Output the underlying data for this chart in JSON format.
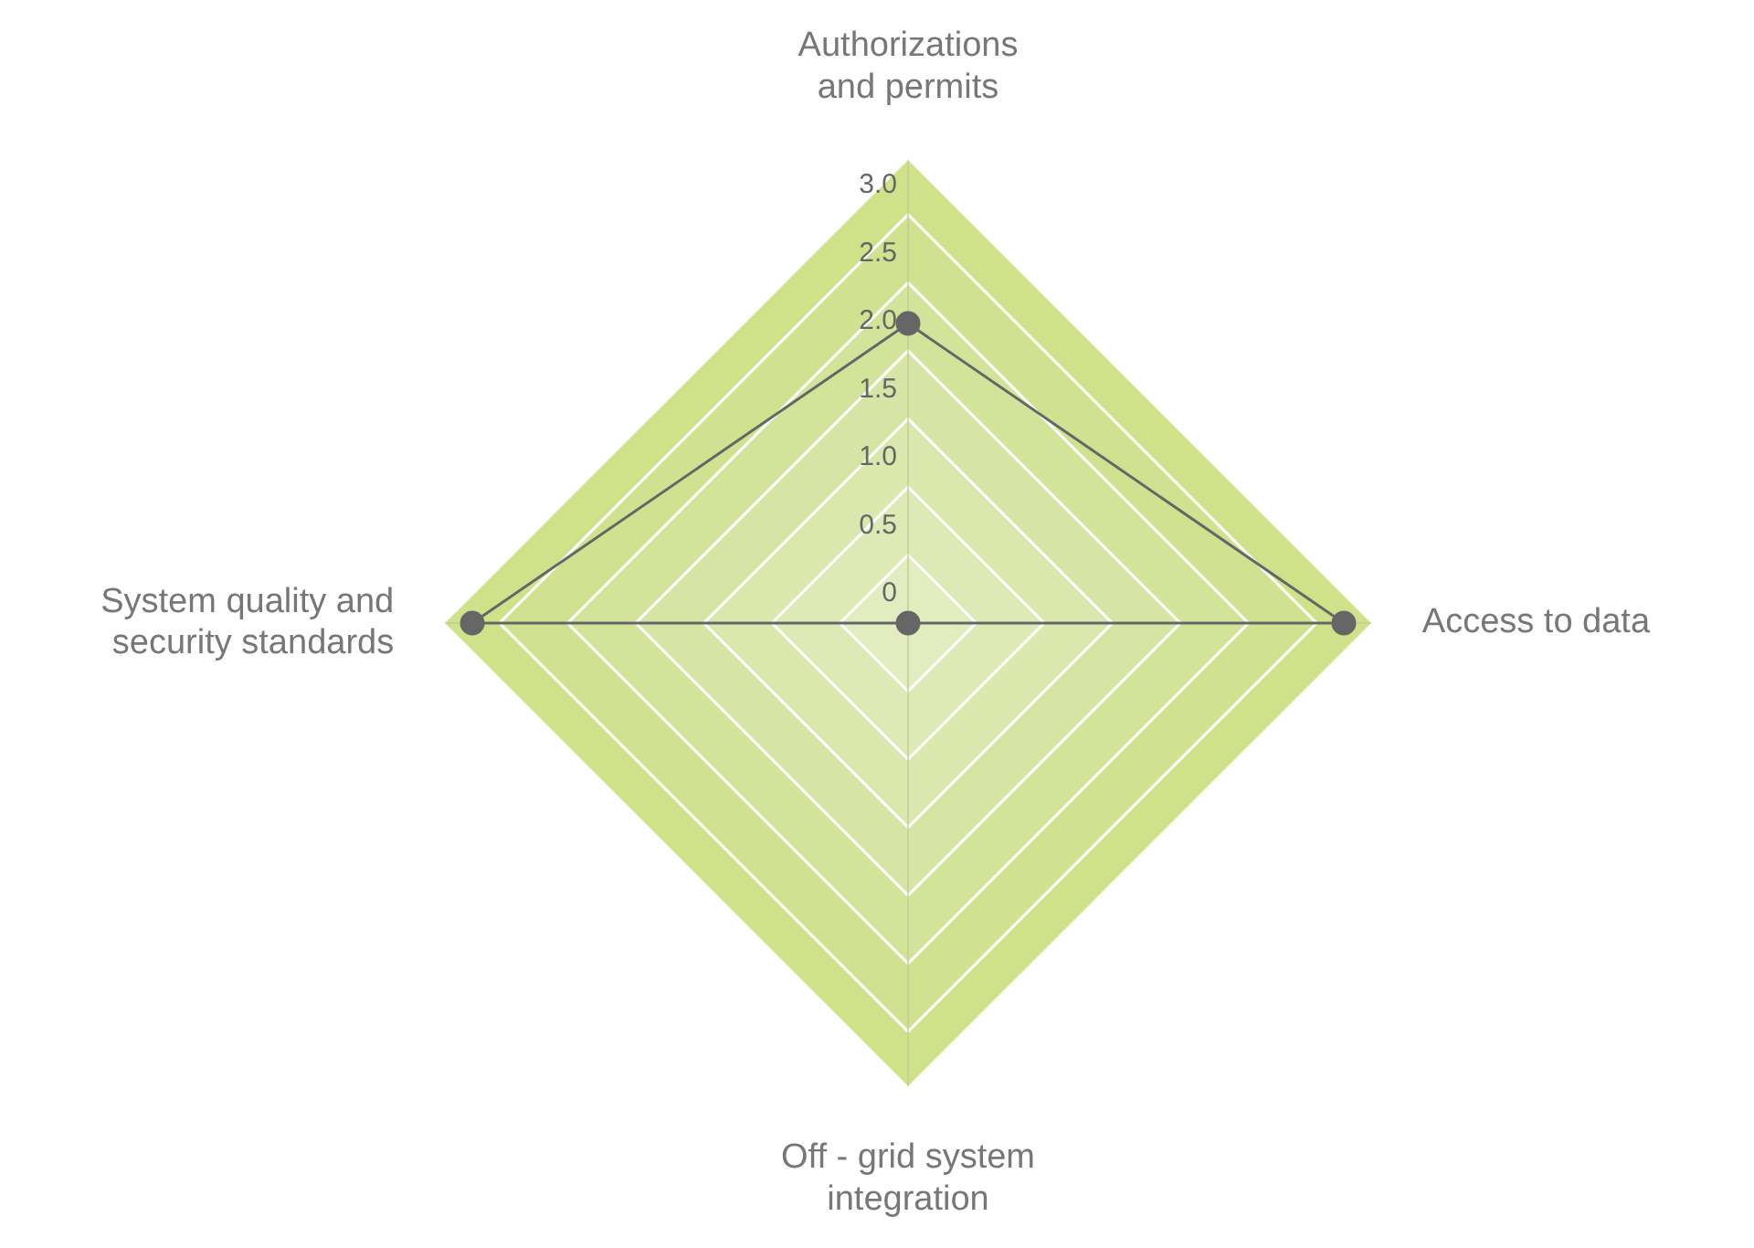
{
  "chart_data": {
    "type": "radar",
    "categories": [
      "Authorizations and permits",
      "Access to data",
      "Off - grid system integration",
      "System quality and security standards"
    ],
    "series": [
      {
        "color": "#666666",
        "values": [
          2.2,
          3.2,
          0,
          3.2
        ]
      }
    ],
    "ylim": [
      0,
      3.4
    ],
    "yticks": [
      0,
      0.5,
      {
        "value": 1,
        "label": "1.0"
      },
      1.5,
      {
        "value": 2,
        "label": "2.0"
      },
      2.5,
      {
        "value": 3,
        "label": "3.0"
      }
    ],
    "grid": true,
    "legend": false,
    "marker": "circle"
  }
}
